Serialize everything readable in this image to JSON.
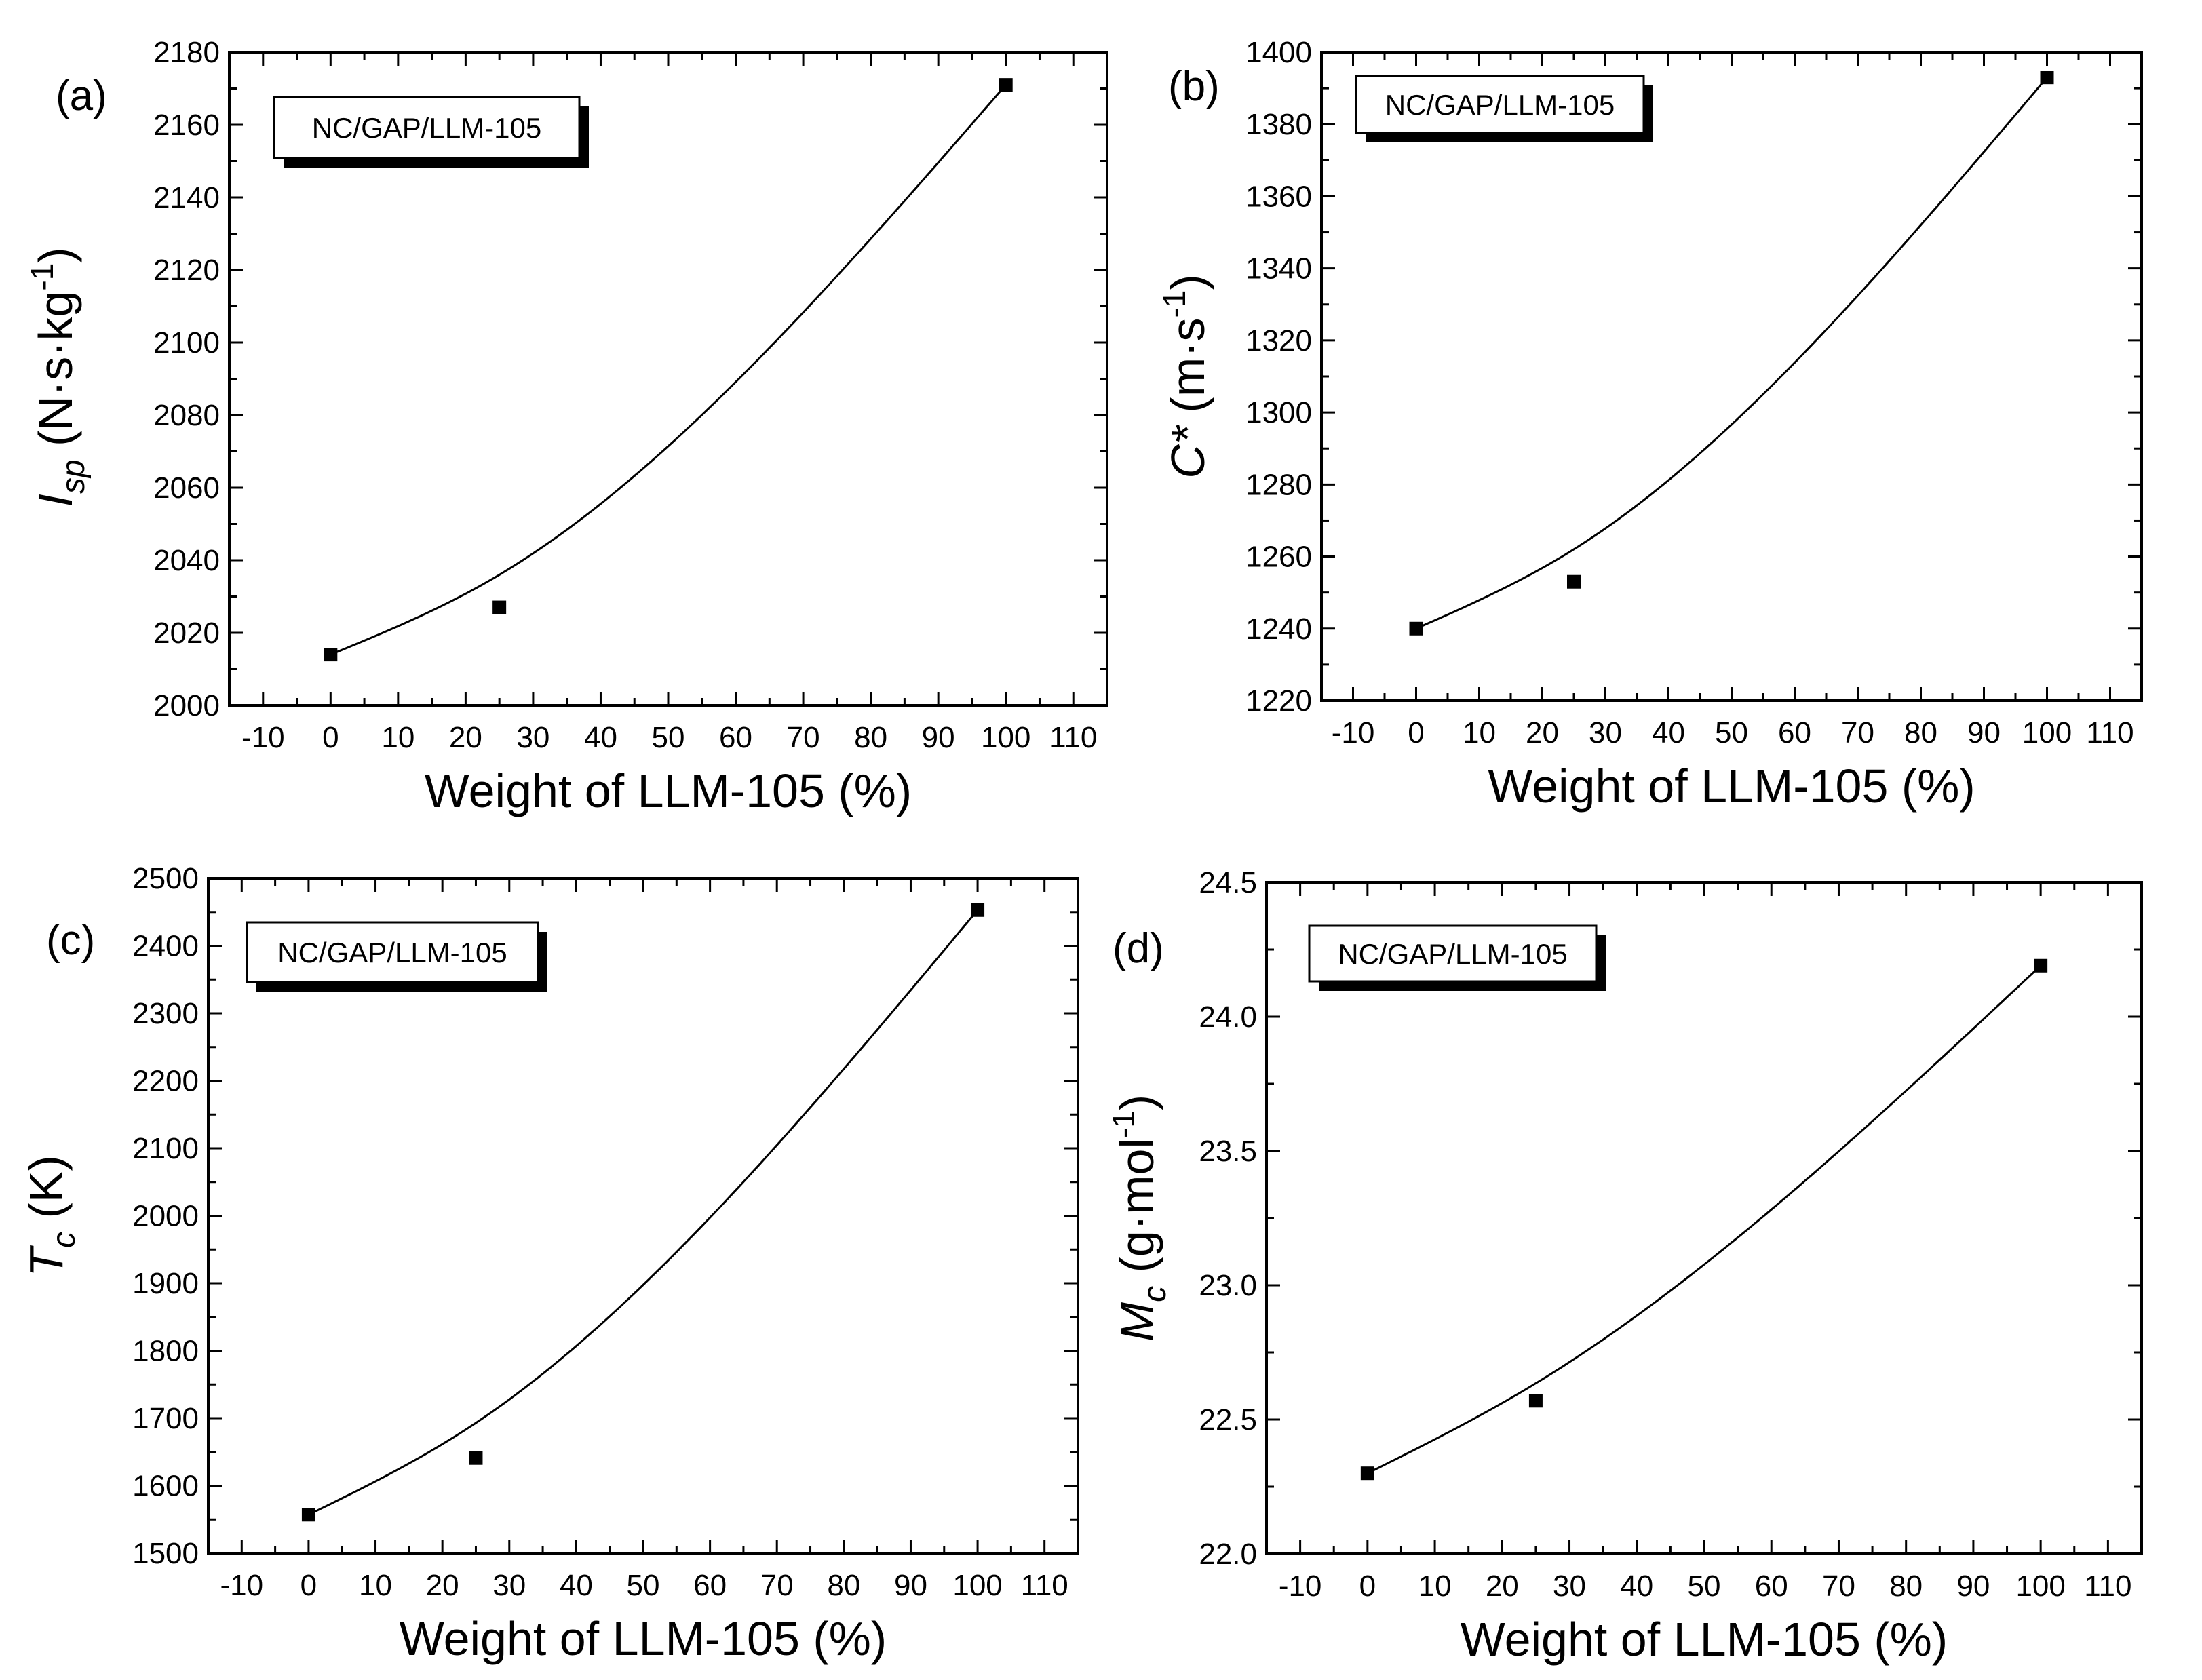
{
  "chart_data": [
    {
      "type": "scatter",
      "panel_label": "(a)",
      "legend": "NC/GAP/LLM-105",
      "xlabel": "Weight of LLM-105 (%)",
      "ylabel": {
        "symbol": "I",
        "subscript": "sp",
        "unit": "(N·s·kg",
        "superscript": "-1",
        "close": ")"
      },
      "xlim": [
        -15,
        115
      ],
      "ylim": [
        2000,
        2180
      ],
      "xticks": [
        -10,
        0,
        10,
        20,
        30,
        40,
        50,
        60,
        70,
        80,
        90,
        100,
        110
      ],
      "yticks": [
        2000,
        2020,
        2040,
        2060,
        2080,
        2100,
        2120,
        2140,
        2160,
        2180
      ],
      "ytick_labels": [
        "2000",
        "2020",
        "2040",
        "2060",
        "2080",
        "2100",
        "2120",
        "2140",
        "2160",
        "2180"
      ],
      "points": {
        "x": [
          0,
          25,
          100
        ],
        "y": [
          2014,
          2027,
          2171
        ]
      },
      "fit_curve": {
        "x": [
          0,
          25,
          100
        ],
        "y": [
          2014,
          2036,
          2171
        ]
      }
    },
    {
      "type": "scatter",
      "panel_label": "(b)",
      "legend": "NC/GAP/LLM-105",
      "xlabel": "Weight of LLM-105 (%)",
      "ylabel": {
        "symbol": "C*",
        "subscript": "",
        "unit": "(m·s",
        "superscript": "-1",
        "close": ")"
      },
      "xlim": [
        -15,
        115
      ],
      "ylim": [
        1220,
        1400
      ],
      "xticks": [
        -10,
        0,
        10,
        20,
        30,
        40,
        50,
        60,
        70,
        80,
        90,
        100,
        110
      ],
      "yticks": [
        1220,
        1240,
        1260,
        1280,
        1300,
        1320,
        1340,
        1360,
        1380,
        1400
      ],
      "ytick_labels": [
        "1220",
        "1240",
        "1260",
        "1280",
        "1300",
        "1320",
        "1340",
        "1360",
        "1380",
        "1400"
      ],
      "points": {
        "x": [
          0,
          25,
          100
        ],
        "y": [
          1240,
          1253,
          1393
        ]
      },
      "fit_curve": {
        "x": [
          0,
          25,
          100
        ],
        "y": [
          1240,
          1262,
          1393
        ]
      }
    },
    {
      "type": "scatter",
      "panel_label": "(c)",
      "legend": "NC/GAP/LLM-105",
      "xlabel": "Weight of LLM-105 (%)",
      "ylabel": {
        "symbol": "T",
        "subscript": "c",
        "unit": "(K)",
        "superscript": "",
        "close": ""
      },
      "xlim": [
        -15,
        115
      ],
      "ylim": [
        1500,
        2500
      ],
      "xticks": [
        -10,
        0,
        10,
        20,
        30,
        40,
        50,
        60,
        70,
        80,
        90,
        100,
        110
      ],
      "yticks": [
        1500,
        1600,
        1700,
        1800,
        1900,
        2000,
        2100,
        2200,
        2300,
        2400,
        2500
      ],
      "ytick_labels": [
        "1500",
        "1600",
        "1700",
        "1800",
        "1900",
        "2000",
        "2100",
        "2200",
        "2300",
        "2400",
        "2500"
      ],
      "points": {
        "x": [
          0,
          25,
          100
        ],
        "y": [
          1557,
          1641,
          2453
        ]
      },
      "fit_curve": {
        "x": [
          0,
          25,
          100
        ],
        "y": [
          1557,
          1693,
          2453
        ]
      }
    },
    {
      "type": "scatter",
      "panel_label": "(d)",
      "legend": "NC/GAP/LLM-105",
      "xlabel": "Weight of LLM-105 (%)",
      "ylabel": {
        "symbol": "M",
        "subscript": "c",
        "unit": "(g·mol",
        "superscript": "-1",
        "close": ")"
      },
      "xlim": [
        -15,
        115
      ],
      "ylim": [
        22.0,
        24.5
      ],
      "xticks": [
        -10,
        0,
        10,
        20,
        30,
        40,
        50,
        60,
        70,
        80,
        90,
        100,
        110
      ],
      "yticks": [
        22.0,
        22.5,
        23.0,
        23.5,
        24.0,
        24.5
      ],
      "ytick_labels": [
        "22.0",
        "22.5",
        "23.0",
        "23.5",
        "24.0",
        "24.5"
      ],
      "points": {
        "x": [
          0,
          25,
          100
        ],
        "y": [
          22.3,
          22.57,
          24.19
        ]
      },
      "fit_curve": {
        "x": [
          0,
          25,
          100
        ],
        "y": [
          22.3,
          22.635,
          24.19
        ]
      }
    }
  ]
}
